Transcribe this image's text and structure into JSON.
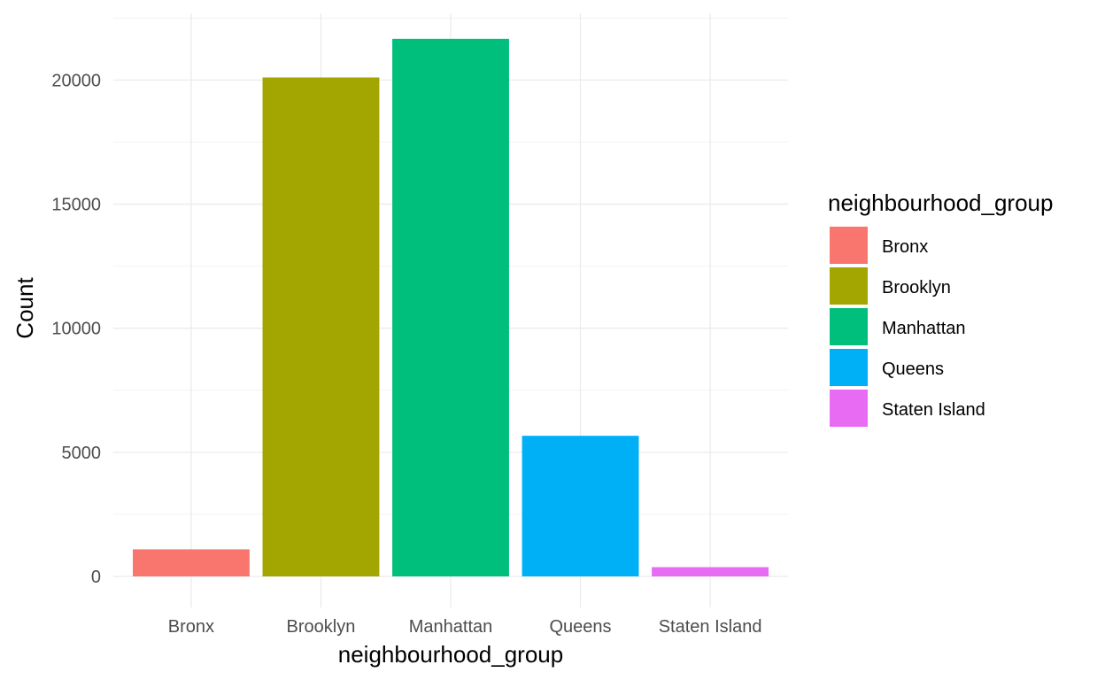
{
  "chart_data": {
    "type": "bar",
    "title": "",
    "xlabel": "neighbourhood_group",
    "ylabel": "Count",
    "categories": [
      "Bronx",
      "Brooklyn",
      "Manhattan",
      "Queens",
      "Staten Island"
    ],
    "values": [
      1091,
      20104,
      21661,
      5666,
      373
    ],
    "colors": [
      "#F8766D",
      "#A3A500",
      "#00BF7D",
      "#00B0F6",
      "#E76BF3"
    ],
    "ylim": [
      0,
      22800
    ],
    "yticks": [
      0,
      5000,
      10000,
      15000,
      20000
    ],
    "ytick_labels": [
      "0",
      "5000",
      "10000",
      "15000",
      "20000"
    ],
    "grid": true,
    "legend": {
      "title": "neighbourhood_group",
      "position": "right",
      "items": [
        "Bronx",
        "Brooklyn",
        "Manhattan",
        "Queens",
        "Staten Island"
      ]
    }
  }
}
